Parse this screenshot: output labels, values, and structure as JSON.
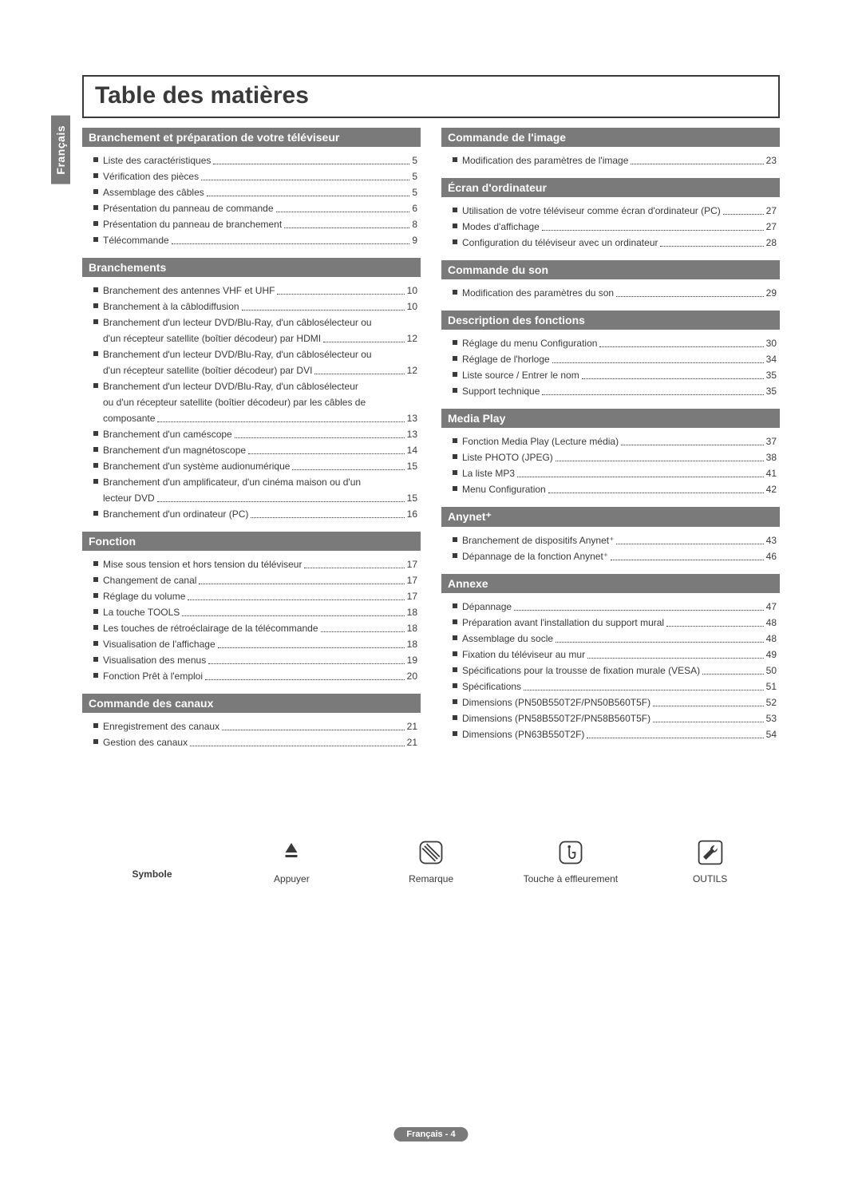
{
  "language_tab": "Français",
  "title": "Table des matières",
  "footer": "Français - 4",
  "symbol_row": {
    "label": "Symbole",
    "items": [
      {
        "caption": "Appuyer"
      },
      {
        "caption": "Remarque"
      },
      {
        "caption": "Touche à effleurement"
      },
      {
        "caption": "OUTILS"
      }
    ]
  },
  "colors": {
    "header_bg": "#7a7a7a",
    "header_fg": "#ffffff",
    "text": "#3a3a3a",
    "page_bg": "#ffffff"
  },
  "left": [
    {
      "header": "Branchement et préparation de votre téléviseur",
      "items": [
        {
          "label": "Liste des caractéristiques",
          "page": "5"
        },
        {
          "label": "Vérification des pièces",
          "page": "5"
        },
        {
          "label": "Assemblage des câbles",
          "page": "5"
        },
        {
          "label": "Présentation du panneau de commande",
          "page": "6"
        },
        {
          "label": "Présentation du panneau de branchement",
          "page": "8"
        },
        {
          "label": "Télécommande",
          "page": "9"
        }
      ]
    },
    {
      "header": "Branchements",
      "items": [
        {
          "label": "Branchement des antennes VHF et UHF",
          "page": "10"
        },
        {
          "label": "Branchement à la câblodiffusion",
          "page": "10"
        },
        {
          "label": "Branchement d'un lecteur DVD/Blu-Ray, d'un câblosélecteur ou",
          "cont": true
        },
        {
          "label": "d'un récepteur satellite (boîtier décodeur) par HDMI",
          "page": "12",
          "contend": true
        },
        {
          "label": "Branchement d'un lecteur DVD/Blu-Ray, d'un câblosélecteur ou",
          "cont": true
        },
        {
          "label": "d'un récepteur satellite (boîtier décodeur) par DVI",
          "page": "12",
          "contend": true
        },
        {
          "label": "Branchement d'un lecteur DVD/Blu-Ray, d'un câblosélecteur",
          "cont": true
        },
        {
          "label": "ou d'un récepteur satellite (boîtier décodeur) par les câbles de",
          "cont": true,
          "mid": true
        },
        {
          "label": "composante",
          "page": "13",
          "contend": true
        },
        {
          "label": "Branchement d'un caméscope",
          "page": "13"
        },
        {
          "label": "Branchement d'un magnétoscope",
          "page": "14"
        },
        {
          "label": "Branchement d'un système audionumérique",
          "page": "15"
        },
        {
          "label": "Branchement d'un amplificateur, d'un cinéma maison ou d'un",
          "cont": true
        },
        {
          "label": "lecteur DVD",
          "page": "15",
          "contend": true
        },
        {
          "label": "Branchement d'un ordinateur (PC)",
          "page": "16"
        }
      ]
    },
    {
      "header": "Fonction",
      "items": [
        {
          "label": "Mise sous tension et hors tension du téléviseur",
          "page": "17"
        },
        {
          "label": "Changement de canal",
          "page": "17"
        },
        {
          "label": "Réglage du volume",
          "page": "17"
        },
        {
          "label": "La touche TOOLS",
          "page": "18"
        },
        {
          "label": "Les touches de rétroéclairage de la télécommande",
          "page": "18"
        },
        {
          "label": "Visualisation de l'affichage",
          "page": "18"
        },
        {
          "label": "Visualisation des menus",
          "page": "19"
        },
        {
          "label": "Fonction Prêt à l'emploi",
          "page": "20"
        }
      ]
    },
    {
      "header": "Commande des canaux",
      "items": [
        {
          "label": "Enregistrement des canaux",
          "page": "21"
        },
        {
          "label": "Gestion des canaux",
          "page": "21"
        }
      ]
    }
  ],
  "right": [
    {
      "header": "Commande de l'image",
      "items": [
        {
          "label": "Modification des paramètres de l'image",
          "page": "23"
        }
      ]
    },
    {
      "header": "Écran d'ordinateur",
      "items": [
        {
          "label": "Utilisation de votre téléviseur comme écran d'ordinateur (PC)",
          "page": "27",
          "tight": true
        },
        {
          "label": "Modes d'affichage",
          "page": "27"
        },
        {
          "label": "Configuration du téléviseur avec un ordinateur",
          "page": "28"
        }
      ]
    },
    {
      "header": "Commande du son",
      "items": [
        {
          "label": "Modification des paramètres du son",
          "page": "29"
        }
      ]
    },
    {
      "header": "Description des fonctions",
      "items": [
        {
          "label": "Réglage du menu Configuration",
          "page": "30"
        },
        {
          "label": "Réglage de l'horloge",
          "page": "34"
        },
        {
          "label": "Liste source / Entrer le nom",
          "page": "35"
        },
        {
          "label": "Support technique",
          "page": "35"
        }
      ]
    },
    {
      "header": "Media Play",
      "items": [
        {
          "label": "Fonction Media Play (Lecture média)",
          "page": "37"
        },
        {
          "label": "Liste PHOTO (JPEG)",
          "page": "38"
        },
        {
          "label": "La liste MP3",
          "page": "41"
        },
        {
          "label": "Menu Configuration",
          "page": "42"
        }
      ]
    },
    {
      "header": "Anynet⁺",
      "items": [
        {
          "label": "Branchement de dispositifs Anynet⁺",
          "page": "43"
        },
        {
          "label": "Dépannage de la fonction Anynet⁺",
          "page": "46"
        }
      ]
    },
    {
      "header": "Annexe",
      "items": [
        {
          "label": "Dépannage",
          "page": "47"
        },
        {
          "label": "Préparation avant l'installation du support mural",
          "page": "48"
        },
        {
          "label": "Assemblage du socle",
          "page": "48"
        },
        {
          "label": "Fixation du téléviseur au mur",
          "page": "49"
        },
        {
          "label": "Spécifications pour la trousse de fixation murale (VESA)",
          "page": "50"
        },
        {
          "label": "Spécifications",
          "page": "51"
        },
        {
          "label": "Dimensions (PN50B550T2F/PN50B560T5F)",
          "page": "52"
        },
        {
          "label": "Dimensions (PN58B550T2F/PN58B560T5F)",
          "page": "53"
        },
        {
          "label": "Dimensions (PN63B550T2F)",
          "page": "54"
        }
      ]
    }
  ]
}
